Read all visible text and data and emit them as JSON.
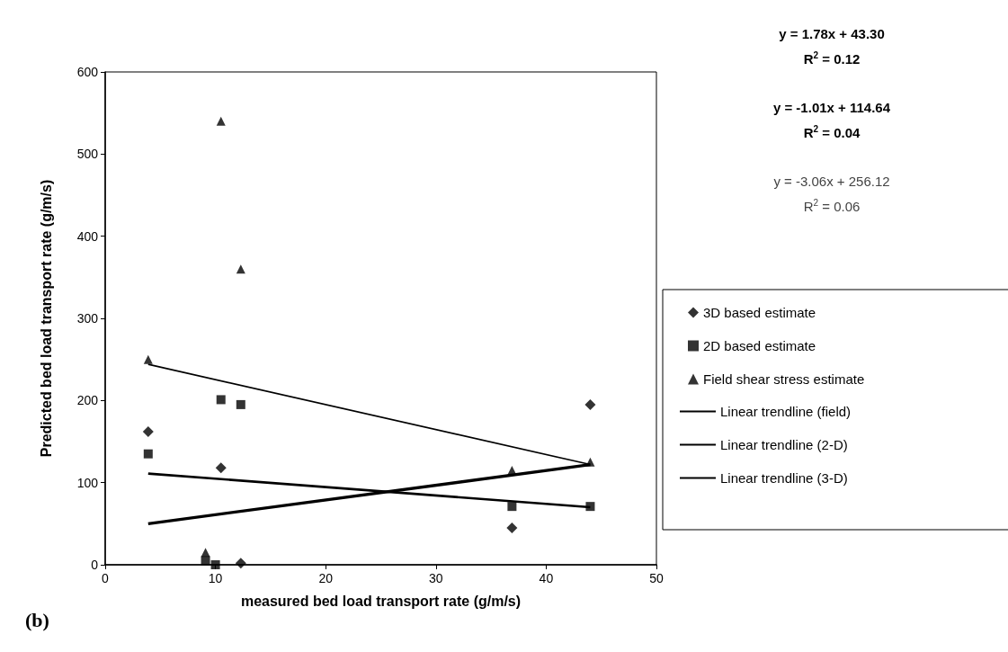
{
  "chart_data": {
    "type": "scatter",
    "xlabel": "measured bed load transport rate (g/m/s)",
    "ylabel": "Predicted bed load transport rate (g/m/s)",
    "xlim": [
      0,
      50
    ],
    "xticks": [
      0,
      10,
      20,
      30,
      40,
      50
    ],
    "ylim": [
      0,
      600
    ],
    "yticks": [
      0,
      100,
      200,
      300,
      400,
      500,
      600
    ],
    "grid": false,
    "legend": "right",
    "series": [
      {
        "name": "3D based estimate",
        "color": "#000000",
        "marker": "diamond",
        "x": [
          3.9,
          10.5,
          12.3,
          36.9,
          44.0
        ],
        "values": [
          162,
          118,
          2,
          45,
          195
        ]
      },
      {
        "name": "2D based estimate",
        "color": "#000000",
        "marker": "square",
        "x": [
          3.9,
          9.1,
          10.0,
          10.5,
          12.3,
          36.9,
          44.0
        ],
        "values": [
          135,
          5,
          0,
          201,
          195,
          71,
          71
        ]
      },
      {
        "name": "Field shear stress estimate",
        "color": "#000000",
        "marker": "triangle",
        "x": [
          3.9,
          9.1,
          10.5,
          12.3,
          36.9,
          44.0
        ],
        "values": [
          250,
          15,
          540,
          360,
          115,
          125
        ]
      },
      {
        "name": "Linear trendline (field)",
        "type": "line",
        "color": "#000000",
        "marker": "none",
        "x": [
          3.9,
          44.0
        ],
        "values": [
          244,
          122
        ]
      },
      {
        "name": "Linear trendline (2-D)",
        "type": "line",
        "color": "#000000",
        "marker": "none",
        "x": [
          3.9,
          44.0
        ],
        "values": [
          111,
          70
        ]
      },
      {
        "name": "Linear trendline (3-D)",
        "type": "line",
        "color": "#000000",
        "marker": "none",
        "x": [
          3.9,
          44.0
        ],
        "values": [
          50,
          122
        ]
      }
    ],
    "annotations": [
      "y = 1.78x + 43.30",
      "R$^{2}$ = 0.12",
      "y = -1.01x + 114.64",
      "R$^{2}$ = 0.04",
      "y = -3.06x + 256.12",
      "R$^{2}$ = 0.06",
      "(b)"
    ]
  }
}
